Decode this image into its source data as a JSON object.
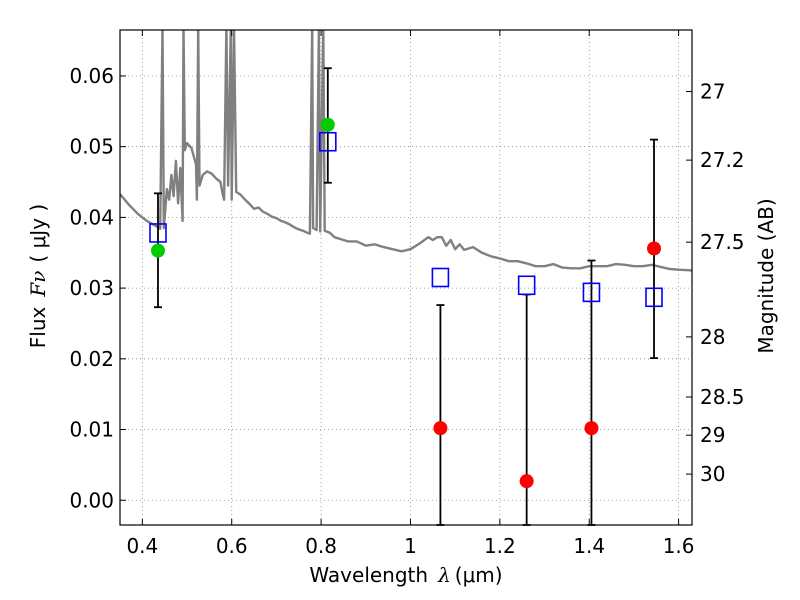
{
  "chart_data": {
    "type": "scatter",
    "title": "",
    "xlabel": {
      "prefix": "Wavelength",
      "symbol": "λ",
      "unit": "(μm)"
    },
    "ylabel": {
      "prefix": "Flux",
      "symbol": "Fν",
      "unit": "( μJy )"
    },
    "ylabel_right": "Magnitude (AB)",
    "xlim": [
      0.35,
      1.63
    ],
    "ylim": [
      -0.0035,
      0.0665
    ],
    "grid": true,
    "x_ticks": [
      0.4,
      0.6,
      0.8,
      1.0,
      1.2,
      1.4,
      1.6
    ],
    "x_tick_labels": [
      "0.4",
      "0.6",
      "0.8",
      "1",
      "1.2",
      "1.4",
      "1.6"
    ],
    "y_ticks": [
      0.0,
      0.01,
      0.02,
      0.03,
      0.04,
      0.05,
      0.06
    ],
    "y_tick_labels": [
      "0.00",
      "0.01",
      "0.02",
      "0.03",
      "0.04",
      "0.05",
      "0.06"
    ],
    "right_ticks": [
      {
        "label": "27",
        "flux": 0.0578
      },
      {
        "label": "27.2",
        "flux": 0.0481
      },
      {
        "label": "27.5",
        "flux": 0.0365
      },
      {
        "label": "28",
        "flux": 0.0231
      },
      {
        "label": "28.5",
        "flux": 0.0146
      },
      {
        "label": "29",
        "flux": 0.0092
      },
      {
        "label": "30",
        "flux": 0.0037
      }
    ],
    "colors": {
      "model": "#808080",
      "observed": "#ff0000",
      "observed_alt": "#00cc00",
      "model_photometry": "#0000ff",
      "errorbar": "#000000",
      "grid": "#888888"
    },
    "series": [
      {
        "kind": "model_spectrum",
        "points": [
          [
            0.35,
            0.0433
          ],
          [
            0.37,
            0.0418
          ],
          [
            0.39,
            0.0405
          ],
          [
            0.41,
            0.0395
          ],
          [
            0.43,
            0.0388
          ],
          [
            0.44,
            0.0384
          ],
          [
            0.445,
            0.067
          ],
          [
            0.448,
            0.0385
          ],
          [
            0.455,
            0.044
          ],
          [
            0.46,
            0.0425
          ],
          [
            0.465,
            0.046
          ],
          [
            0.47,
            0.043
          ],
          [
            0.475,
            0.048
          ],
          [
            0.48,
            0.042
          ],
          [
            0.485,
            0.047
          ],
          [
            0.49,
            0.0395
          ],
          [
            0.492,
            0.067
          ],
          [
            0.495,
            0.0495
          ],
          [
            0.5,
            0.0505
          ],
          [
            0.51,
            0.0498
          ],
          [
            0.52,
            0.0475
          ],
          [
            0.522,
            0.0425
          ],
          [
            0.525,
            0.067
          ],
          [
            0.528,
            0.0445
          ],
          [
            0.535,
            0.046
          ],
          [
            0.545,
            0.0465
          ],
          [
            0.555,
            0.0462
          ],
          [
            0.565,
            0.0455
          ],
          [
            0.575,
            0.045
          ],
          [
            0.58,
            0.0432
          ],
          [
            0.583,
            0.0425
          ],
          [
            0.588,
            0.067
          ],
          [
            0.592,
            0.0445
          ],
          [
            0.598,
            0.067
          ],
          [
            0.6,
            0.0425
          ],
          [
            0.605,
            0.067
          ],
          [
            0.61,
            0.0436
          ],
          [
            0.62,
            0.0432
          ],
          [
            0.63,
            0.0425
          ],
          [
            0.64,
            0.0419
          ],
          [
            0.65,
            0.0412
          ],
          [
            0.66,
            0.0414
          ],
          [
            0.67,
            0.0408
          ],
          [
            0.68,
            0.0405
          ],
          [
            0.69,
            0.0401
          ],
          [
            0.7,
            0.0399
          ],
          [
            0.71,
            0.0395
          ],
          [
            0.72,
            0.0393
          ],
          [
            0.73,
            0.039
          ],
          [
            0.74,
            0.0386
          ],
          [
            0.75,
            0.0383
          ],
          [
            0.76,
            0.0381
          ],
          [
            0.77,
            0.0378
          ],
          [
            0.775,
            0.0377
          ],
          [
            0.78,
            0.067
          ],
          [
            0.782,
            0.0385
          ],
          [
            0.79,
            0.0382
          ],
          [
            0.795,
            0.067
          ],
          [
            0.798,
            0.038
          ],
          [
            0.805,
            0.067
          ],
          [
            0.808,
            0.0381
          ],
          [
            0.82,
            0.0378
          ],
          [
            0.83,
            0.0372
          ],
          [
            0.84,
            0.037
          ],
          [
            0.86,
            0.0366
          ],
          [
            0.88,
            0.0366
          ],
          [
            0.9,
            0.036
          ],
          [
            0.92,
            0.0362
          ],
          [
            0.94,
            0.0358
          ],
          [
            0.96,
            0.0355
          ],
          [
            0.98,
            0.0352
          ],
          [
            1.0,
            0.0355
          ],
          [
            1.02,
            0.0363
          ],
          [
            1.04,
            0.0372
          ],
          [
            1.05,
            0.0368
          ],
          [
            1.06,
            0.0372
          ],
          [
            1.07,
            0.0372
          ],
          [
            1.08,
            0.036
          ],
          [
            1.09,
            0.0368
          ],
          [
            1.1,
            0.0355
          ],
          [
            1.11,
            0.0362
          ],
          [
            1.12,
            0.0354
          ],
          [
            1.14,
            0.0358
          ],
          [
            1.16,
            0.035
          ],
          [
            1.18,
            0.0345
          ],
          [
            1.2,
            0.0342
          ],
          [
            1.22,
            0.0338
          ],
          [
            1.24,
            0.0338
          ],
          [
            1.26,
            0.0335
          ],
          [
            1.28,
            0.0331
          ],
          [
            1.3,
            0.0331
          ],
          [
            1.32,
            0.0334
          ],
          [
            1.34,
            0.0329
          ],
          [
            1.36,
            0.0328
          ],
          [
            1.38,
            0.0328
          ],
          [
            1.4,
            0.0331
          ],
          [
            1.42,
            0.0331
          ],
          [
            1.44,
            0.0331
          ],
          [
            1.46,
            0.0334
          ],
          [
            1.48,
            0.0333
          ],
          [
            1.5,
            0.0331
          ],
          [
            1.52,
            0.0331
          ],
          [
            1.54,
            0.0333
          ],
          [
            1.56,
            0.033
          ],
          [
            1.58,
            0.0327
          ],
          [
            1.6,
            0.0326
          ],
          [
            1.63,
            0.0325
          ]
        ]
      },
      {
        "kind": "model_photometry",
        "points": [
          [
            0.435,
            0.0378
          ],
          [
            0.815,
            0.0507
          ],
          [
            1.067,
            0.0315
          ],
          [
            1.26,
            0.0304
          ],
          [
            1.405,
            0.0294
          ],
          [
            1.545,
            0.0287
          ]
        ]
      },
      {
        "kind": "observed",
        "points": [
          {
            "x": 0.435,
            "y": 0.0353,
            "err_low": 0.0273,
            "err_high": 0.0434,
            "color": "observed_alt"
          },
          {
            "x": 0.815,
            "y": 0.0531,
            "err_low": 0.0449,
            "err_high": 0.0611,
            "color": "observed_alt"
          },
          {
            "x": 1.067,
            "y": 0.0102,
            "err_low": -0.0035,
            "err_high": 0.0276,
            "color": "observed"
          },
          {
            "x": 1.26,
            "y": 0.0027,
            "err_low": -0.0035,
            "err_high": 0.0291,
            "color": "observed"
          },
          {
            "x": 1.405,
            "y": 0.0102,
            "err_low": -0.0035,
            "err_high": 0.0339,
            "color": "observed"
          },
          {
            "x": 1.545,
            "y": 0.0356,
            "err_low": 0.0201,
            "err_high": 0.051,
            "color": "observed"
          }
        ]
      }
    ]
  }
}
